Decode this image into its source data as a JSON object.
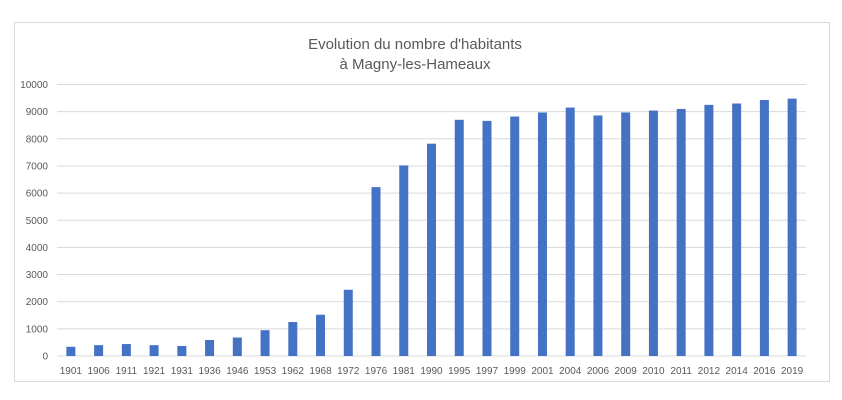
{
  "chart_data": {
    "type": "bar",
    "title": [
      "Evolution du nombre d'habitants",
      "à Magny-les-Hameaux"
    ],
    "xlabel": "",
    "ylabel": "",
    "ylim": [
      0,
      10000
    ],
    "yticks": [
      0,
      1000,
      2000,
      3000,
      4000,
      5000,
      6000,
      7000,
      8000,
      9000,
      10000
    ],
    "grid": true,
    "legend": "none",
    "bar_color": "#4472C4",
    "categories": [
      "1901",
      "1906",
      "1911",
      "1921",
      "1931",
      "1936",
      "1946",
      "1953",
      "1962",
      "1968",
      "1972",
      "1976",
      "1981",
      "1990",
      "1995",
      "1997",
      "1999",
      "2001",
      "2004",
      "2006",
      "2009",
      "2010",
      "2011",
      "2012",
      "2014",
      "2016",
      "2019"
    ],
    "values": [
      340,
      400,
      440,
      400,
      370,
      590,
      680,
      950,
      1250,
      1520,
      2440,
      6220,
      7020,
      7820,
      8700,
      8660,
      8820,
      8970,
      9150,
      8860,
      8970,
      9040,
      9100,
      9250,
      9300,
      9430,
      9480
    ]
  }
}
